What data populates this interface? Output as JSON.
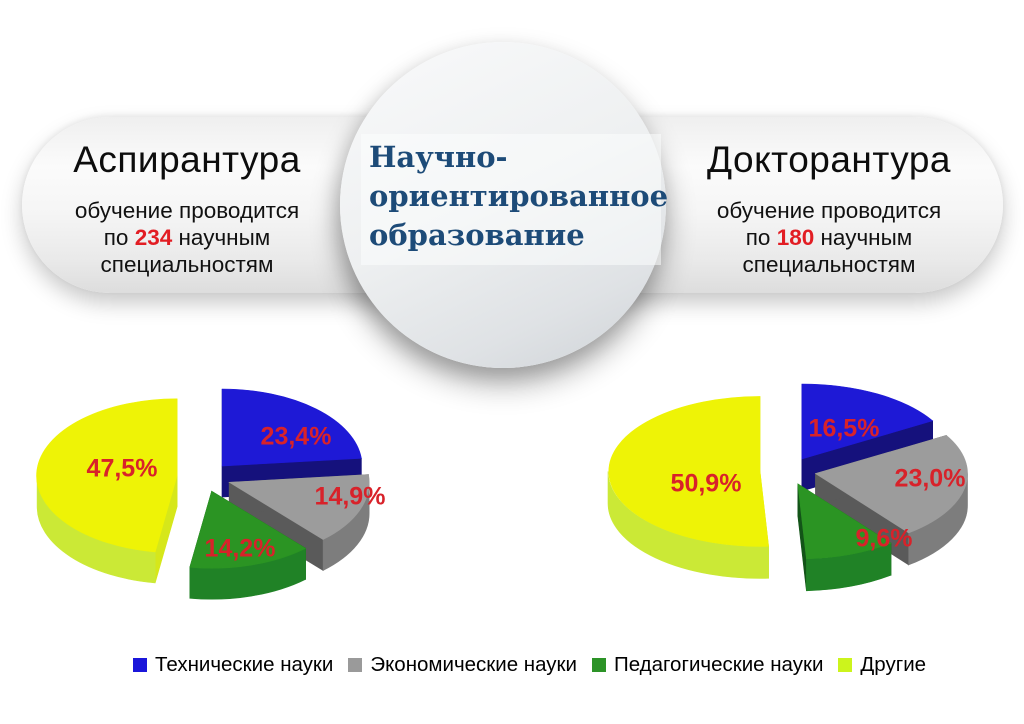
{
  "banner": {
    "pill_left": {
      "title": "Аспирантура",
      "line1": "обучение проводится",
      "line2_prefix": "по ",
      "line2_number": "234",
      "line2_suffix": " научным специальностям"
    },
    "pill_right": {
      "title": "Докторантура",
      "line1": "обучение проводится",
      "line2_prefix": "по ",
      "line2_number": "180",
      "line2_suffix": " научным специальностям"
    },
    "center_circle": {
      "line1": "Научно-",
      "line2": "ориентированное",
      "line3": "образование"
    }
  },
  "legend": [
    {
      "label": "Технические науки",
      "color": "#1b16da"
    },
    {
      "label": "Экономические науки",
      "color": "#9a9a9a"
    },
    {
      "label": "Педагогические науки",
      "color": "#2c9327"
    },
    {
      "label": "Другие",
      "color": "#ccf41c"
    }
  ],
  "colors": {
    "number_accent": "#e21d23",
    "circle_title_text": "#1d4b78",
    "pct_label": "#d8222a",
    "slice_palette": [
      {
        "top": "#1e19d6",
        "side": "#1f1bb0",
        "wall": "#15117c"
      },
      {
        "top": "#9c9c9c",
        "side": "#7d7d7d",
        "wall": "#5a5a5a"
      },
      {
        "top": "#2b9423",
        "side": "#208226",
        "wall": "#135418"
      },
      {
        "top": "#eef306",
        "side": "#cbe936",
        "wall": "#d6e71a"
      }
    ]
  },
  "chart_data": [
    {
      "type": "pie",
      "title": "Аспирантура",
      "categories": [
        "Технические науки",
        "Экономические науки",
        "Педагогические науки",
        "Другие"
      ],
      "values": [
        23.4,
        14.9,
        14.2,
        47.5
      ],
      "display_labels": [
        "23,4%",
        "14,9%",
        "14,2%",
        "47,5%"
      ],
      "unit": "%",
      "style": "3d-exploded",
      "start_angle_deg": 0,
      "legend_position": "bottom"
    },
    {
      "type": "pie",
      "title": "Докторантура",
      "categories": [
        "Технические науки",
        "Экономические науки",
        "Педагогические науки",
        "Другие"
      ],
      "values": [
        16.5,
        23.0,
        9.6,
        50.9
      ],
      "display_labels": [
        "16,5%",
        "23,0%",
        "9,6%",
        "50,9%"
      ],
      "unit": "%",
      "style": "3d-exploded",
      "start_angle_deg": 0,
      "legend_position": "bottom"
    }
  ]
}
